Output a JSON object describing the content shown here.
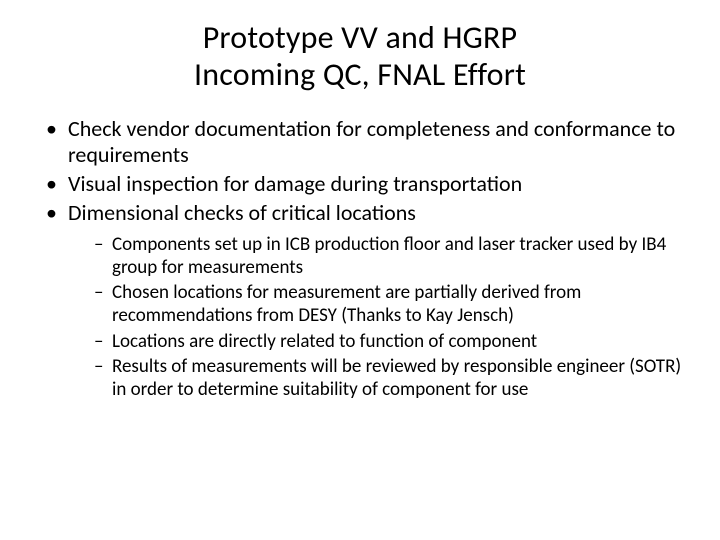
{
  "title_line1": "Prototype VV and HGRP",
  "title_line2": "Incoming QC, FNAL Effort",
  "bullets": {
    "b1": "Check vendor documentation for completeness and conformance to requirements",
    "b2": "Visual inspection for damage during transportation",
    "b3": "Dimensional checks of critical locations",
    "sub1": "Components set up in ICB production floor and laser tracker used by IB4 group for measurements",
    "sub2": "Chosen locations for measurement are partially derived from recommendations from DESY (Thanks to Kay Jensch)",
    "sub3": "Locations are directly related to function of component",
    "sub4": "Results of measurements will be reviewed by responsible engineer (SOTR) in order to determine suitability of component for use"
  },
  "colors": {
    "text": "#000000",
    "background": "#ffffff"
  },
  "typography": {
    "title_fontsize": 32,
    "bullet_fontsize": 22,
    "subbullet_fontsize": 19,
    "font_family": "Calibri"
  }
}
